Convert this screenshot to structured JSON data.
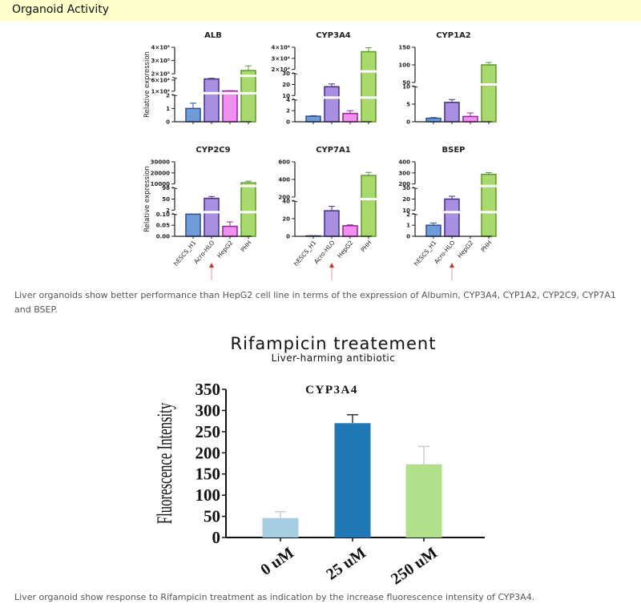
{
  "section": {
    "title": "Organoid Activity"
  },
  "caption1": "Liver organoids show better performance than HepG2 cell line in terms of the expression of Albumin, CYP3A4, CYP1A2, CYP2C9, CYP7A1 and BSEP.",
  "caption2": "Liver organoid show response to Rifampicin treatment as indication by the increase fluorescence intensity of CYP3A4.",
  "colors": {
    "hESCS_H1": {
      "fill": "#6f9bd8",
      "edge": "#2f4f8f"
    },
    "Acro-HLO": {
      "fill": "#a98fe0",
      "edge": "#452c8a"
    },
    "HepG2": {
      "fill": "#ef8ff0",
      "edge": "#9c1f9e"
    },
    "PHH": {
      "fill": "#a9d96d",
      "edge": "#5a9a2a"
    },
    "arrow": "#c0392b"
  },
  "chart_data": [
    {
      "type": "bar",
      "title": "ALB",
      "ylabel": "Relative expression",
      "categories": [
        "hESCS_H1",
        "Acro-HLO",
        "HepG2",
        "PHH"
      ],
      "values": [
        1,
        65000,
        11000,
        225000
      ],
      "errors": [
        0.4,
        3000,
        1000,
        35000
      ],
      "broken_axis": true,
      "segments": [
        {
          "range": [
            0,
            2
          ],
          "ticks": [
            "0",
            "1",
            "2"
          ]
        },
        {
          "range": [
            10000,
            70000
          ],
          "ticks": [
            "1×10⁴",
            "6×10⁴"
          ],
          "tick_values": [
            10000,
            60000
          ]
        },
        {
          "range": [
            200000,
            400000
          ],
          "ticks": [
            "2×10⁵",
            "3×10⁵",
            "4×10⁵"
          ]
        }
      ]
    },
    {
      "type": "bar",
      "title": "CYP3A4",
      "ylabel": "",
      "categories": [
        "hESCS_H1",
        "Acro-HLO",
        "HepG2",
        "PHH"
      ],
      "values": [
        1,
        18,
        1.5,
        36000
      ],
      "errors": [
        0.1,
        2.5,
        0.5,
        3500
      ],
      "broken_axis": true,
      "segments": [
        {
          "range": [
            0,
            4
          ],
          "ticks": [
            "0",
            "2",
            "4"
          ]
        },
        {
          "range": [
            10,
            30
          ],
          "ticks": [
            "10",
            "20",
            "30"
          ]
        },
        {
          "range": [
            20000,
            40000
          ],
          "ticks": [
            "2×10⁴",
            "3×10⁴",
            "4×10⁴"
          ]
        }
      ]
    },
    {
      "type": "bar",
      "title": "CYP1A2",
      "ylabel": "",
      "categories": [
        "hESCS_H1",
        "Acro-HLO",
        "HepG2",
        "PHH"
      ],
      "values": [
        1,
        5.5,
        1.5,
        100
      ],
      "errors": [
        0.2,
        0.8,
        1,
        7
      ],
      "broken_axis": true,
      "segments": [
        {
          "range": [
            0,
            10
          ],
          "ticks": [
            "0",
            "5",
            "10"
          ]
        },
        {
          "range": [
            50,
            150
          ],
          "ticks": [
            "50",
            "100",
            "150"
          ]
        }
      ]
    },
    {
      "type": "bar",
      "title": "CYP2C9",
      "ylabel": "Relative expression",
      "categories": [
        "hESCS_H1",
        "Acro-HLO",
        "HepG2",
        "PHH"
      ],
      "values": [
        0.1,
        53,
        0.045,
        11000
      ],
      "errors": [
        0,
        8,
        0.02,
        1500
      ],
      "broken_axis": true,
      "segments": [
        {
          "range": [
            0,
            0.1
          ],
          "ticks": [
            "0.00",
            "0.05",
            "0.10"
          ]
        },
        {
          "range": [
            2,
            98
          ],
          "ticks": [
            "2",
            "50",
            "98"
          ]
        },
        {
          "range": [
            10000,
            30000
          ],
          "ticks": [
            "10000",
            "20000",
            "30000"
          ]
        }
      ]
    },
    {
      "type": "bar",
      "title": "CYP7A1",
      "ylabel": "",
      "categories": [
        "hESCS_H1",
        "Acro-HLO",
        "HepG2",
        "PHH"
      ],
      "values": [
        0.5,
        29,
        12,
        445
      ],
      "errors": [
        0.2,
        5,
        1,
        35
      ],
      "broken_axis": true,
      "segments": [
        {
          "range": [
            0,
            40
          ],
          "ticks": [
            "0",
            "20",
            "40"
          ]
        },
        {
          "range": [
            200,
            600
          ],
          "ticks": [
            "200",
            "400",
            "600"
          ]
        }
      ]
    },
    {
      "type": "bar",
      "title": "BSEP",
      "ylabel": "",
      "categories": [
        "hESCS_H1",
        "Acro-HLO",
        "HepG2",
        "PHH"
      ],
      "values": [
        1,
        20,
        0,
        287
      ],
      "errors": [
        0.2,
        2.5,
        0,
        15
      ],
      "broken_axis": true,
      "segments": [
        {
          "range": [
            0,
            2
          ],
          "ticks": [
            "0",
            "1",
            "2"
          ]
        },
        {
          "range": [
            10,
            30
          ],
          "ticks": [
            "10",
            "20",
            "30"
          ]
        },
        {
          "range": [
            200,
            400
          ],
          "ticks": [
            "200",
            "300",
            "400"
          ]
        }
      ]
    },
    {
      "type": "bar",
      "header": "Rifampicin treatement",
      "subheader": "Liver-harming antibiotic",
      "title": "CYP3A4",
      "ylabel": "Fluorescence Intensity",
      "categories": [
        "0 uM",
        "25 uM",
        "250 uM"
      ],
      "values": [
        46,
        270,
        173
      ],
      "errors": [
        15,
        20,
        42
      ],
      "ylim": [
        0,
        350
      ],
      "yticks": [
        "0",
        "50",
        "100",
        "150",
        "200",
        "250",
        "300",
        "350"
      ],
      "colors": [
        "#a6cee3",
        "#1f78b4",
        "#b2df8a"
      ]
    }
  ]
}
